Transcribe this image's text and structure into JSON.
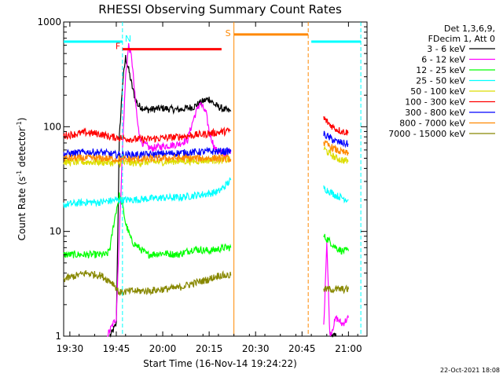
{
  "chart_data": {
    "type": "line",
    "title": "RHESSI Observing Summary Count Rates",
    "xlabel": "Start Time (16-Nov-14 19:24:22)",
    "ylabel": "Count Rate (s",
    "ylabel_sup1": "-1",
    "ylabel_mid": " detector",
    "ylabel_sup2": "-1",
    "ylabel_end": ")",
    "y_scale": "log",
    "ylim": [
      1,
      1000
    ],
    "xlim_minutes": [
      -2,
      96
    ],
    "x_ticks": [
      {
        "label": "19:30",
        "t": 0
      },
      {
        "label": "19:45",
        "t": 15
      },
      {
        "label": "20:00",
        "t": 30
      },
      {
        "label": "20:15",
        "t": 45
      },
      {
        "label": "20:30",
        "t": 60
      },
      {
        "label": "20:45",
        "t": 75
      },
      {
        "label": "21:00",
        "t": 90
      }
    ],
    "y_ticks": [
      {
        "label": "1",
        "v": 1
      },
      {
        "label": "10",
        "v": 10
      },
      {
        "label": "100",
        "v": 100
      },
      {
        "label": "1000",
        "v": 1000
      }
    ],
    "legend_header": [
      "Det 1,3,6,9,",
      "FDecim 1, Att 0"
    ],
    "legend_placement": "right",
    "series": [
      {
        "name": "3 - 6 keV",
        "color": "#000000",
        "points": [
          [
            13,
            1
          ],
          [
            15,
            1.3
          ],
          [
            16,
            80
          ],
          [
            17,
            250
          ],
          [
            18,
            460
          ],
          [
            19,
            350
          ],
          [
            20,
            250
          ],
          [
            21,
            190
          ],
          [
            22,
            160
          ],
          [
            25,
            145
          ],
          [
            30,
            150
          ],
          [
            35,
            145
          ],
          [
            40,
            155
          ],
          [
            43,
            175
          ],
          [
            45,
            185
          ],
          [
            47,
            160
          ],
          [
            50,
            145
          ],
          [
            52,
            140
          ]
        ],
        "points2": [
          [
            84,
            1
          ],
          [
            85,
            1
          ],
          [
            86,
            1
          ]
        ]
      },
      {
        "name": "6 - 12 keV",
        "color": "#ff00ff",
        "points": [
          [
            12,
            1
          ],
          [
            15,
            1.5
          ],
          [
            16,
            10
          ],
          [
            17,
            60
          ],
          [
            18,
            300
          ],
          [
            19,
            600
          ],
          [
            20,
            450
          ],
          [
            21,
            200
          ],
          [
            22,
            100
          ],
          [
            23,
            72
          ],
          [
            26,
            62
          ],
          [
            30,
            65
          ],
          [
            35,
            68
          ],
          [
            38,
            75
          ],
          [
            40,
            120
          ],
          [
            42,
            170
          ],
          [
            44,
            135
          ],
          [
            45,
            90
          ],
          [
            47,
            60
          ],
          [
            50,
            55
          ],
          [
            52,
            60
          ]
        ],
        "points2": [
          [
            82,
            1.2
          ],
          [
            83,
            8
          ],
          [
            84,
            1
          ],
          [
            86,
            1.5
          ],
          [
            88,
            1.3
          ],
          [
            90,
            1.5
          ]
        ]
      },
      {
        "name": "12 - 25 keV",
        "color": "#00ff00",
        "points": [
          [
            -2,
            6
          ],
          [
            5,
            6
          ],
          [
            10,
            6
          ],
          [
            12,
            6
          ],
          [
            13,
            7
          ],
          [
            14,
            11
          ],
          [
            15,
            16
          ],
          [
            16,
            22
          ],
          [
            17,
            18
          ],
          [
            18,
            12
          ],
          [
            20,
            8
          ],
          [
            25,
            6
          ],
          [
            30,
            6.2
          ],
          [
            35,
            6
          ],
          [
            40,
            6.8
          ],
          [
            45,
            6.5
          ],
          [
            50,
            7
          ],
          [
            52,
            7
          ]
        ],
        "points2": [
          [
            82,
            9
          ],
          [
            84,
            8
          ],
          [
            86,
            7
          ],
          [
            88,
            6.5
          ],
          [
            90,
            6.5
          ]
        ]
      },
      {
        "name": "25 - 50 keV",
        "color": "#00ffff",
        "points": [
          [
            -2,
            18
          ],
          [
            5,
            19
          ],
          [
            10,
            19
          ],
          [
            15,
            20
          ],
          [
            20,
            20
          ],
          [
            25,
            20.5
          ],
          [
            30,
            21
          ],
          [
            35,
            21
          ],
          [
            40,
            22
          ],
          [
            45,
            23
          ],
          [
            48,
            24
          ],
          [
            50,
            27
          ],
          [
            52,
            31
          ]
        ],
        "points2": [
          [
            82,
            26
          ],
          [
            84,
            24
          ],
          [
            86,
            22
          ],
          [
            88,
            21
          ],
          [
            90,
            20
          ]
        ]
      },
      {
        "name": "50 - 100 keV",
        "color": "#dddd00",
        "points": [
          [
            -2,
            46
          ],
          [
            5,
            46
          ],
          [
            10,
            46
          ],
          [
            15,
            45
          ],
          [
            20,
            45
          ],
          [
            25,
            46
          ],
          [
            30,
            46
          ],
          [
            35,
            47
          ],
          [
            40,
            47
          ],
          [
            45,
            48
          ],
          [
            50,
            48
          ],
          [
            52,
            48
          ]
        ],
        "points2": [
          [
            82,
            62
          ],
          [
            84,
            55
          ],
          [
            86,
            50
          ],
          [
            88,
            48
          ],
          [
            90,
            47
          ]
        ]
      },
      {
        "name": "100 - 300 keV",
        "color": "#ff0000",
        "points": [
          [
            -2,
            82
          ],
          [
            5,
            88
          ],
          [
            10,
            85
          ],
          [
            13,
            80
          ],
          [
            17,
            78
          ],
          [
            20,
            76
          ],
          [
            25,
            76
          ],
          [
            30,
            78
          ],
          [
            35,
            80
          ],
          [
            40,
            83
          ],
          [
            45,
            86
          ],
          [
            50,
            90
          ],
          [
            52,
            92
          ]
        ],
        "points2": [
          [
            82,
            120
          ],
          [
            84,
            105
          ],
          [
            86,
            95
          ],
          [
            88,
            90
          ],
          [
            90,
            88
          ]
        ]
      },
      {
        "name": "300 - 800 keV",
        "color": "#0000ff",
        "points": [
          [
            -2,
            55
          ],
          [
            5,
            57
          ],
          [
            10,
            57
          ],
          [
            13,
            55
          ],
          [
            15,
            54
          ],
          [
            20,
            54
          ],
          [
            25,
            54
          ],
          [
            30,
            55
          ],
          [
            35,
            56
          ],
          [
            40,
            57
          ],
          [
            45,
            58
          ],
          [
            50,
            58
          ],
          [
            52,
            58
          ]
        ],
        "points2": [
          [
            82,
            85
          ],
          [
            84,
            78
          ],
          [
            86,
            72
          ],
          [
            88,
            70
          ],
          [
            90,
            68
          ]
        ]
      },
      {
        "name": "800 - 7000 keV",
        "color": "#ff8800",
        "points": [
          [
            -2,
            50
          ],
          [
            5,
            50
          ],
          [
            10,
            50
          ],
          [
            15,
            49
          ],
          [
            20,
            49
          ],
          [
            25,
            49
          ],
          [
            30,
            50
          ],
          [
            35,
            50
          ],
          [
            40,
            50
          ],
          [
            45,
            50
          ],
          [
            50,
            50
          ],
          [
            52,
            49
          ]
        ],
        "points2": [
          [
            82,
            70
          ],
          [
            84,
            65
          ],
          [
            86,
            60
          ],
          [
            88,
            57
          ],
          [
            90,
            55
          ]
        ]
      },
      {
        "name": "7000 - 15000 keV",
        "color": "#888800",
        "points": [
          [
            -2,
            3.5
          ],
          [
            5,
            4
          ],
          [
            10,
            3.8
          ],
          [
            14,
            3.2
          ],
          [
            16,
            2.6
          ],
          [
            20,
            2.7
          ],
          [
            25,
            2.7
          ],
          [
            30,
            2.8
          ],
          [
            35,
            2.9
          ],
          [
            40,
            3.2
          ],
          [
            45,
            3.5
          ],
          [
            48,
            3.8
          ],
          [
            50,
            3.8
          ],
          [
            52,
            3.8
          ]
        ],
        "points2": [
          [
            82,
            2.8
          ],
          [
            86,
            2.8
          ],
          [
            90,
            2.8
          ]
        ]
      }
    ],
    "attenuator_bars": [
      {
        "letter": "N",
        "color": "#00ffff",
        "segments": [
          [
            -2,
            17
          ],
          [
            78,
            94
          ]
        ],
        "level": 650,
        "boundaries": [
          17,
          94
        ]
      },
      {
        "letter": "F",
        "color": "#ff0000",
        "segments": [
          [
            17,
            49
          ]
        ],
        "level": 550,
        "boundaries": []
      },
      {
        "letter": "S",
        "color": "#ff8800",
        "segments": [
          [
            53,
            77
          ]
        ],
        "level": 760,
        "boundaries": [
          53,
          77
        ]
      }
    ],
    "data_gap": [
      53,
      80
    ],
    "footer": "22-Oct-2021 18:08",
    "grid": false
  }
}
